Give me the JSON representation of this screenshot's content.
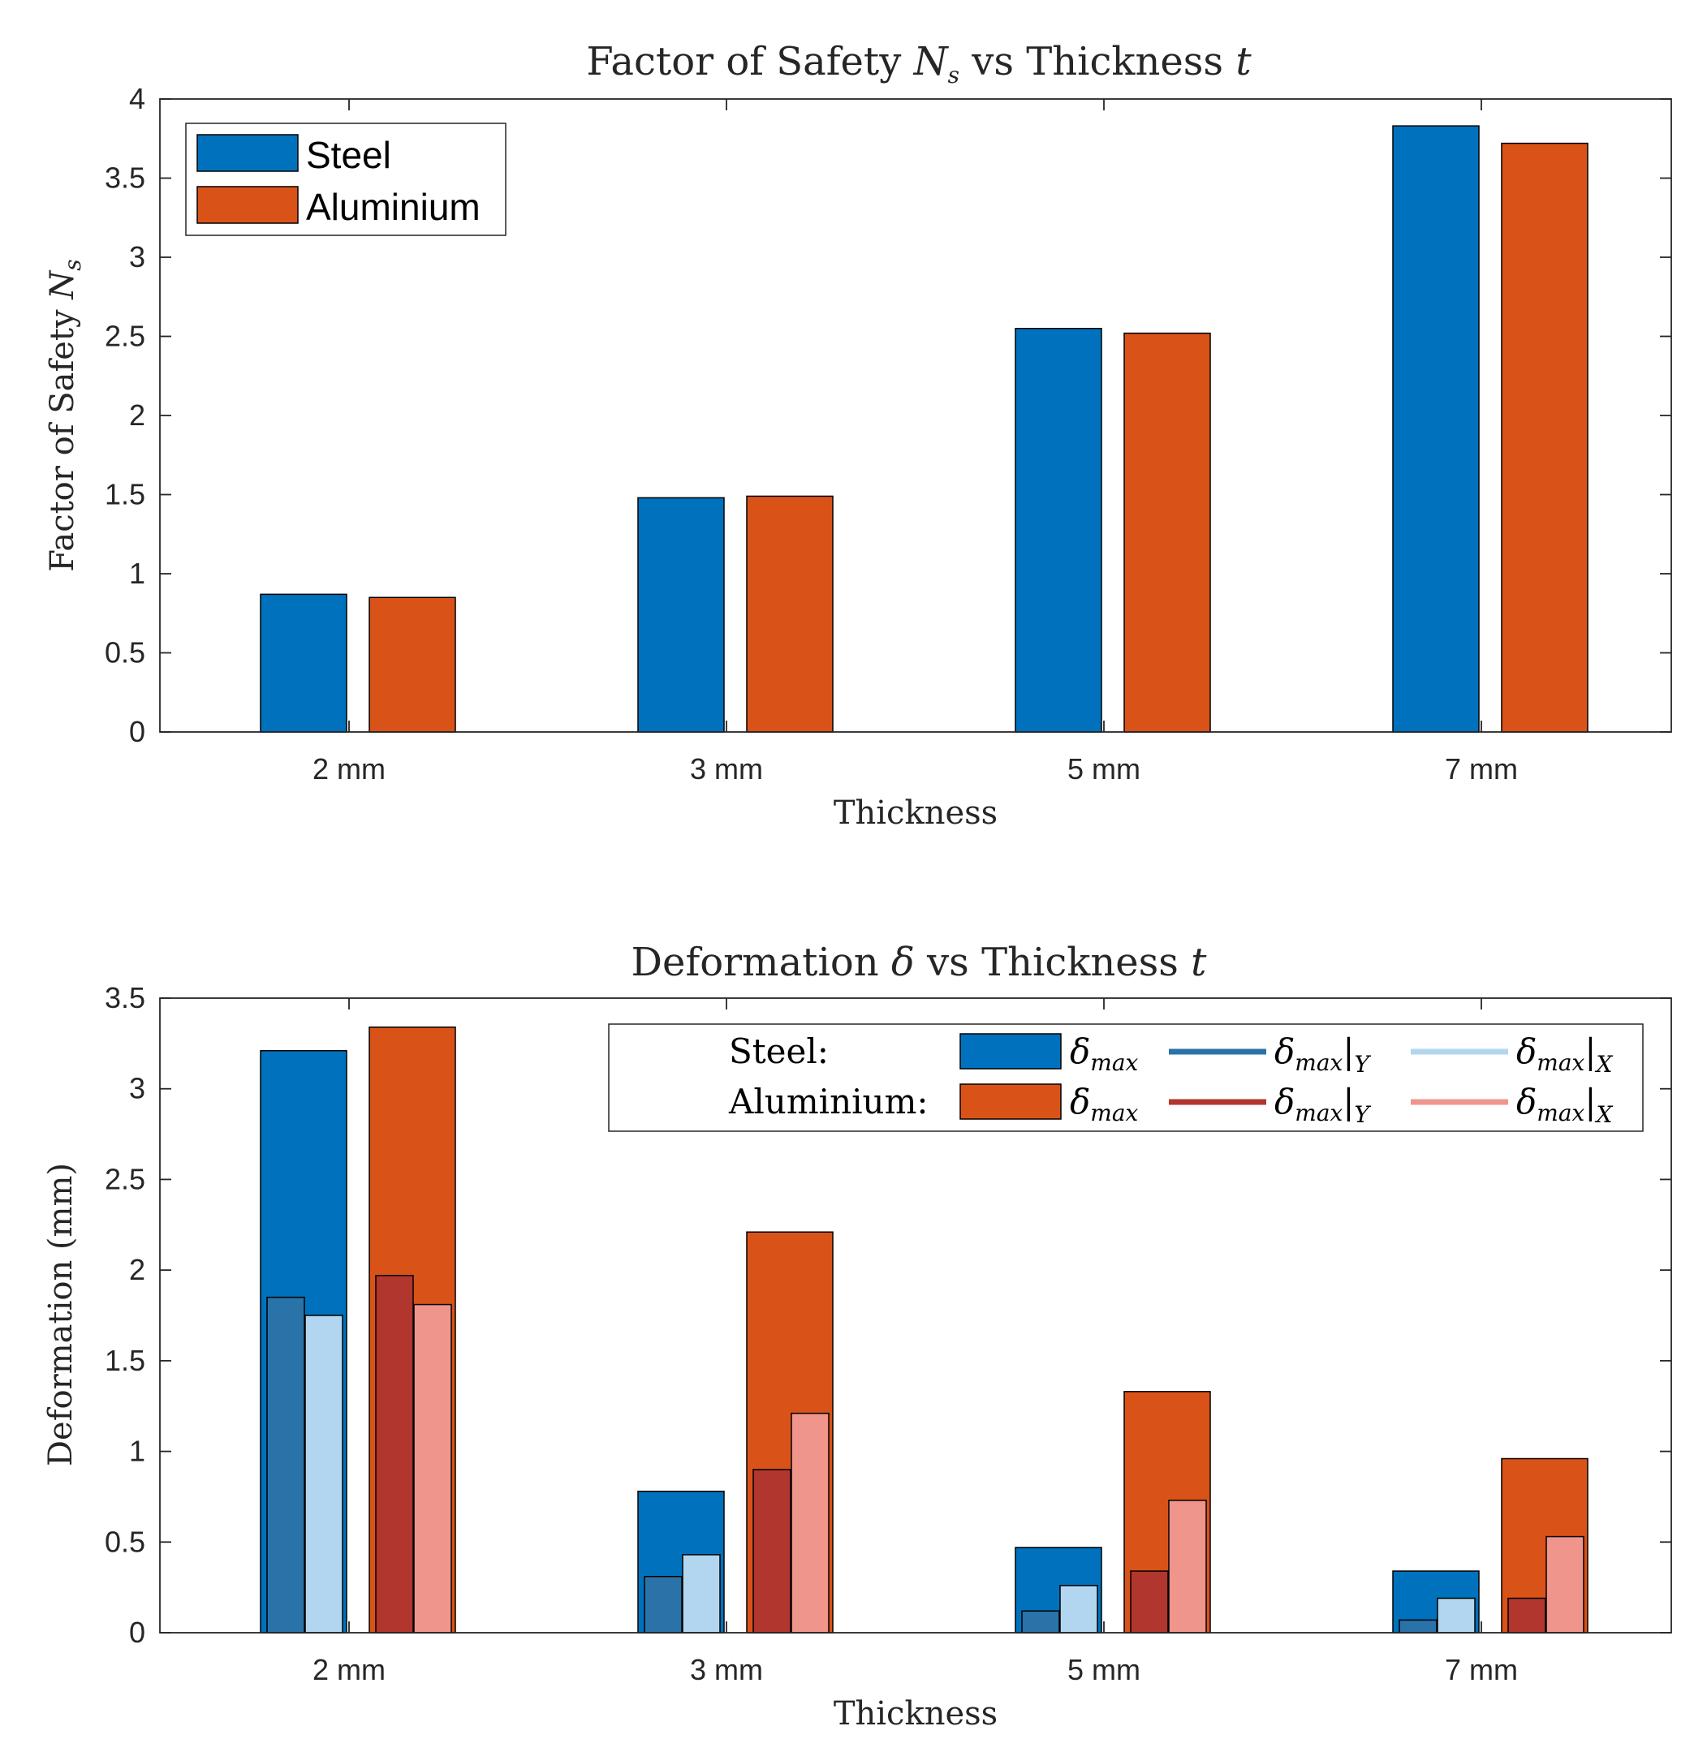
{
  "colors": {
    "steel": "#0072BD",
    "aluminium": "#D95319",
    "steel_y": "#2A73A8",
    "steel_x": "#B3D6F0",
    "alu_y": "#B0362E",
    "alu_x": "#F0958C",
    "axis": "#262626"
  },
  "chart_data": [
    {
      "type": "bar",
      "title_main": "Factor of Safety ",
      "title_sym": "N",
      "title_sub": "s",
      "title_mid": " vs Thickness ",
      "title_end": "t",
      "xlabel": "Thickness",
      "ylabel_main": "Factor of Safety ",
      "ylabel_sym": "N",
      "ylabel_sub": "s",
      "categories": [
        "2 mm",
        "3 mm",
        "5 mm",
        "7 mm"
      ],
      "ylim": [
        0,
        4
      ],
      "yticks": [
        "0",
        "0.5",
        "1",
        "1.5",
        "2",
        "2.5",
        "3",
        "3.5",
        "4"
      ],
      "legend_position": "top-left",
      "series": [
        {
          "name": "Steel",
          "values": [
            0.87,
            1.48,
            2.55,
            3.83
          ]
        },
        {
          "name": "Aluminium",
          "values": [
            0.85,
            1.49,
            2.52,
            3.72
          ]
        }
      ]
    },
    {
      "type": "bar",
      "title_main": "Deformation ",
      "title_sym": "δ",
      "title_mid": " vs Thickness ",
      "title_end": "t",
      "xlabel": "Thickness",
      "ylabel": "Deformation (mm)",
      "categories": [
        "2 mm",
        "3 mm",
        "5 mm",
        "7 mm"
      ],
      "ylim": [
        0,
        3.5
      ],
      "yticks": [
        "0",
        "0.5",
        "1",
        "1.5",
        "2",
        "2.5",
        "3",
        "3.5"
      ],
      "legend_position": "top-right",
      "legend": {
        "steel_label": "Steel:",
        "aluminium_label": "Aluminium:",
        "delta": "δ",
        "max_sub": "max",
        "bar_y": "|",
        "y_sub": "Y",
        "x_sub": "X"
      },
      "series": [
        {
          "name": "Steel δmax",
          "values": [
            3.21,
            0.78,
            0.47,
            0.34
          ]
        },
        {
          "name": "Steel δmax|Y",
          "values": [
            1.85,
            0.31,
            0.12,
            0.07
          ]
        },
        {
          "name": "Steel δmax|X",
          "values": [
            1.75,
            0.43,
            0.26,
            0.19
          ]
        },
        {
          "name": "Aluminium δmax",
          "values": [
            3.34,
            2.21,
            1.33,
            0.96
          ]
        },
        {
          "name": "Aluminium δmax|Y",
          "values": [
            1.97,
            0.9,
            0.34,
            0.19
          ]
        },
        {
          "name": "Aluminium δmax|X",
          "values": [
            1.81,
            1.21,
            0.73,
            0.53
          ]
        }
      ]
    }
  ]
}
